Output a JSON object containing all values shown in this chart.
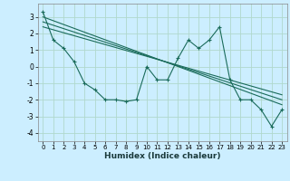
{
  "title": "",
  "xlabel": "Humidex (Indice chaleur)",
  "bg_color": "#cceeff",
  "grid_color": "#b0d8cc",
  "line_color": "#1a6b5a",
  "xlim": [
    -0.5,
    23.5
  ],
  "ylim": [
    -4.5,
    3.8
  ],
  "xticks": [
    0,
    1,
    2,
    3,
    4,
    5,
    6,
    7,
    8,
    9,
    10,
    11,
    12,
    13,
    14,
    15,
    16,
    17,
    18,
    19,
    20,
    21,
    22,
    23
  ],
  "yticks": [
    -4,
    -3,
    -2,
    -1,
    0,
    1,
    2,
    3
  ],
  "series1_x": [
    0,
    1,
    2,
    3,
    4,
    5,
    6,
    7,
    8,
    9,
    10,
    11,
    12,
    13,
    14,
    15,
    16,
    17,
    18,
    19,
    20,
    21,
    22,
    23
  ],
  "series1_y": [
    3.3,
    1.6,
    1.1,
    0.3,
    -1.0,
    -1.4,
    -2.0,
    -2.0,
    -2.1,
    -2.0,
    0.0,
    -0.8,
    -0.8,
    0.5,
    1.6,
    1.1,
    1.6,
    2.4,
    -0.8,
    -2.0,
    -2.0,
    -2.6,
    -3.6,
    -2.6
  ],
  "series2_x": [
    0,
    23
  ],
  "series2_y": [
    3.0,
    -2.3
  ],
  "series3_x": [
    0,
    23
  ],
  "series3_y": [
    2.7,
    -2.0
  ],
  "series4_x": [
    0,
    23
  ],
  "series4_y": [
    2.4,
    -1.7
  ]
}
